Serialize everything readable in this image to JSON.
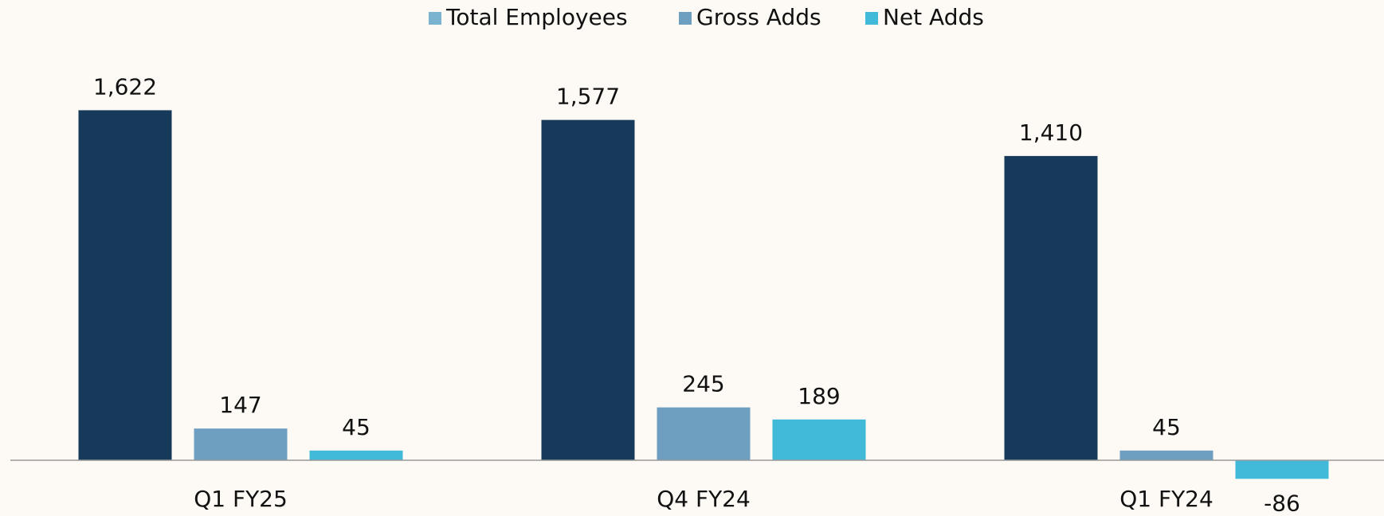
{
  "chart_data": {
    "type": "bar",
    "categories": [
      "Q1 FY25",
      "Q4 FY24",
      "Q1 FY24"
    ],
    "series": [
      {
        "name": "Total Employees",
        "color": "#173a5a",
        "legend_color": "#7ab3d0",
        "values": [
          1622,
          1577,
          1410
        ],
        "value_labels": [
          "1,622",
          "1,577",
          "1,410"
        ]
      },
      {
        "name": "Gross Adds",
        "color": "#6e9fc1",
        "legend_color": "#6e9fc1",
        "values": [
          147,
          245,
          45
        ]
      },
      {
        "name": "Net Adds",
        "color": "#40bad8",
        "legend_color": "#40bad8",
        "values": [
          45,
          189,
          -86
        ]
      }
    ],
    "legend": "top"
  }
}
